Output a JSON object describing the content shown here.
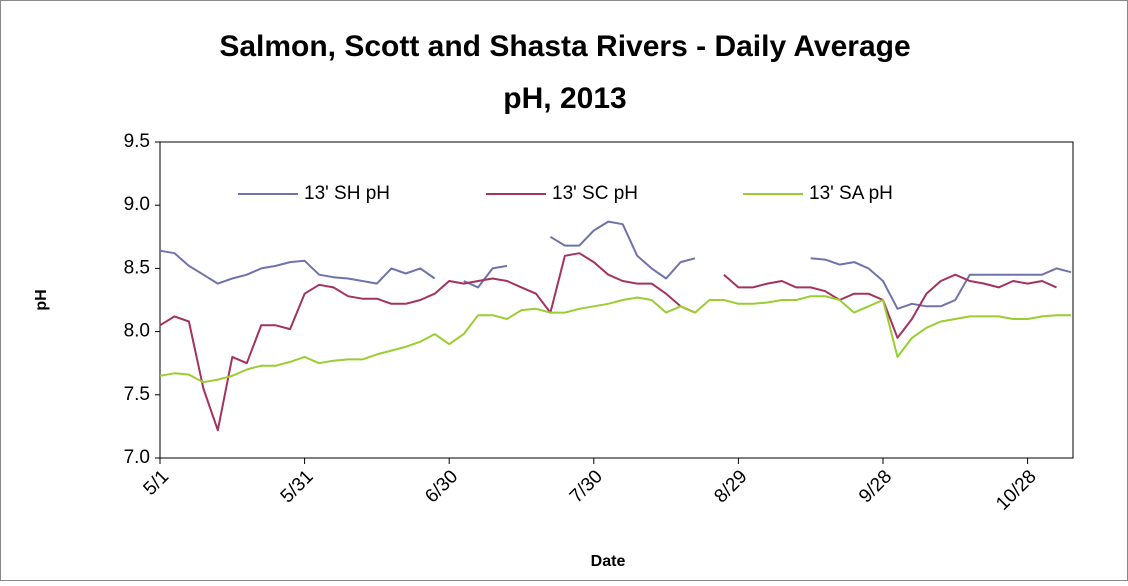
{
  "chart_data": {
    "type": "line",
    "title": [
      "Salmon, Scott and Shasta Rivers - Daily Average",
      "pH, 2013"
    ],
    "x_label": "Date",
    "y_label": "pH",
    "categories": [
      "5/1",
      null,
      null,
      null,
      null,
      null,
      null,
      null,
      null,
      null,
      "5/31",
      null,
      null,
      null,
      null,
      null,
      null,
      null,
      null,
      null,
      "6/30",
      null,
      null,
      null,
      null,
      null,
      null,
      null,
      null,
      null,
      "7/30",
      null,
      null,
      null,
      null,
      null,
      null,
      null,
      null,
      null,
      "8/29",
      null,
      null,
      null,
      null,
      null,
      null,
      null,
      null,
      null,
      "9/28",
      null,
      null,
      null,
      null,
      null,
      null,
      null,
      null,
      null,
      "10/28",
      null,
      null,
      null
    ],
    "series": [
      {
        "name": "13' SH pH",
        "color": "#6f73ab",
        "values": [
          8.64,
          8.62,
          8.52,
          8.45,
          8.38,
          8.42,
          8.45,
          8.5,
          8.52,
          8.55,
          8.56,
          8.45,
          8.43,
          8.42,
          8.4,
          8.38,
          8.5,
          8.46,
          8.5,
          8.42,
          null,
          8.4,
          8.35,
          8.5,
          8.52,
          null,
          null,
          8.75,
          8.68,
          8.68,
          8.8,
          8.87,
          8.85,
          8.6,
          8.5,
          8.42,
          8.55,
          8.58,
          null,
          null,
          null,
          null,
          null,
          null,
          null,
          8.58,
          8.57,
          8.53,
          8.55,
          8.5,
          8.4,
          8.18,
          8.22,
          8.2,
          8.2,
          8.25,
          8.45,
          8.45,
          8.45,
          8.45,
          8.45,
          8.45,
          8.5,
          8.47
        ]
      },
      {
        "name": "13' SC pH",
        "color": "#a3325f",
        "values": [
          8.05,
          8.12,
          8.08,
          7.55,
          7.22,
          7.8,
          7.75,
          8.05,
          8.05,
          8.02,
          8.3,
          8.37,
          8.35,
          8.28,
          8.26,
          8.26,
          8.22,
          8.22,
          8.25,
          8.3,
          8.4,
          8.38,
          8.4,
          8.42,
          8.4,
          8.35,
          8.3,
          8.15,
          8.6,
          8.62,
          8.55,
          8.45,
          8.4,
          8.38,
          8.38,
          8.3,
          8.2,
          8.15,
          null,
          8.45,
          8.35,
          8.35,
          8.38,
          8.4,
          8.35,
          8.35,
          8.32,
          8.25,
          8.3,
          8.3,
          8.25,
          7.95,
          8.1,
          8.3,
          8.4,
          8.45,
          8.4,
          8.38,
          8.35,
          8.4,
          8.38,
          8.4,
          8.35,
          null
        ]
      },
      {
        "name": "13' SA pH",
        "color": "#9acd32",
        "values": [
          7.65,
          7.67,
          7.66,
          7.6,
          7.62,
          7.65,
          7.7,
          7.73,
          7.73,
          7.76,
          7.8,
          7.75,
          7.77,
          7.78,
          7.78,
          7.82,
          7.85,
          7.88,
          7.92,
          7.98,
          7.9,
          7.98,
          8.13,
          8.13,
          8.1,
          8.17,
          8.18,
          8.15,
          8.15,
          8.18,
          8.2,
          8.22,
          8.25,
          8.27,
          8.25,
          8.15,
          8.2,
          8.15,
          8.25,
          8.25,
          8.22,
          8.22,
          8.23,
          8.25,
          8.25,
          8.28,
          8.28,
          8.25,
          8.15,
          8.2,
          8.25,
          7.8,
          7.95,
          8.03,
          8.08,
          8.1,
          8.12,
          8.12,
          8.12,
          8.1,
          8.1,
          8.12,
          8.13,
          8.13
        ]
      }
    ],
    "ylim": [
      7.0,
      9.5
    ],
    "yticks": [
      {
        "value": 7.0,
        "label": "7.0"
      },
      {
        "value": 7.5,
        "label": "7.5"
      },
      {
        "value": 8.0,
        "label": "8.0"
      },
      {
        "value": 8.5,
        "label": "8.5"
      },
      {
        "value": 9.0,
        "label": "9.0"
      },
      {
        "value": 9.5,
        "label": "9.5"
      }
    ],
    "grid": false,
    "legend": "top"
  }
}
